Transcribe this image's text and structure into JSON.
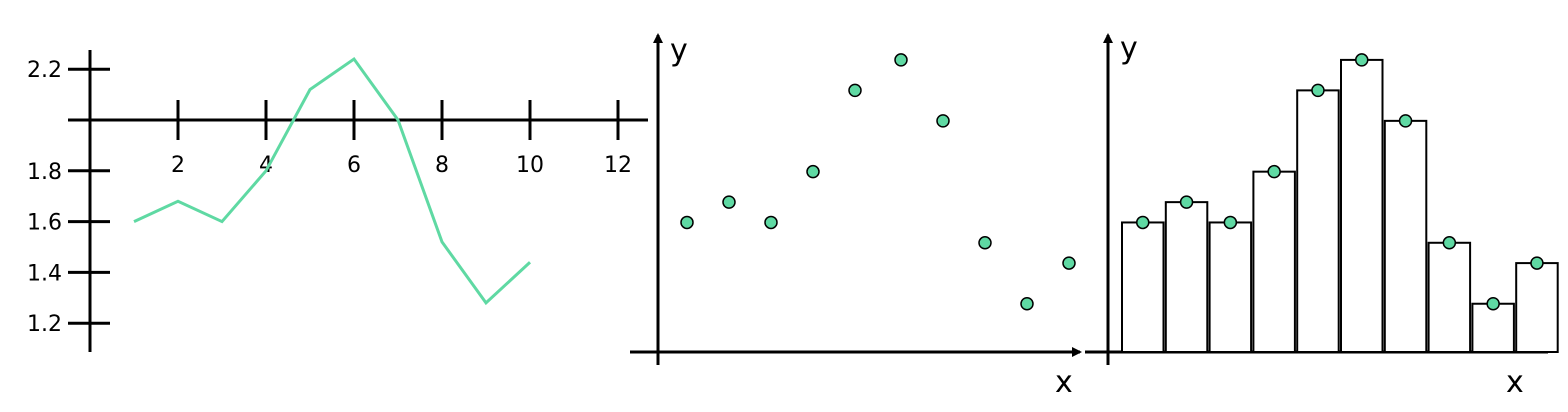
{
  "chart_data": [
    {
      "type": "line",
      "x": [
        1,
        2,
        3,
        4,
        5,
        6,
        7,
        8,
        9,
        10
      ],
      "series": [
        {
          "values": [
            1.6,
            1.68,
            1.6,
            1.8,
            2.12,
            2.24,
            2.0,
            1.52,
            1.28,
            1.44
          ]
        }
      ],
      "x_ticks": [
        "2",
        "4",
        "6",
        "8",
        "10",
        "12"
      ],
      "y_ticks": [
        "1.2",
        "1.4",
        "1.6",
        "1.8",
        "2.2"
      ],
      "xlim": [
        0,
        12
      ],
      "ylim": [
        1.1,
        2.3
      ],
      "color": "#5fd9a3",
      "xlabel": "",
      "ylabel": ""
    },
    {
      "type": "scatter",
      "x": [
        1,
        2,
        3,
        4,
        5,
        6,
        7,
        8,
        9,
        10
      ],
      "series": [
        {
          "values": [
            1.6,
            1.68,
            1.6,
            1.8,
            2.12,
            2.24,
            2.0,
            1.52,
            1.28,
            1.44
          ]
        }
      ],
      "xlabel": "x",
      "ylabel": "y",
      "color": "#5fd9a3"
    },
    {
      "type": "bar",
      "x": [
        1,
        2,
        3,
        4,
        5,
        6,
        7,
        8,
        9,
        10
      ],
      "series": [
        {
          "values": [
            1.6,
            1.68,
            1.6,
            1.8,
            2.12,
            2.24,
            2.0,
            1.52,
            1.28,
            1.44
          ]
        }
      ],
      "xlabel": "x",
      "ylabel": "y",
      "color": "#5fd9a3",
      "bar_fill": "#ffffff"
    }
  ]
}
